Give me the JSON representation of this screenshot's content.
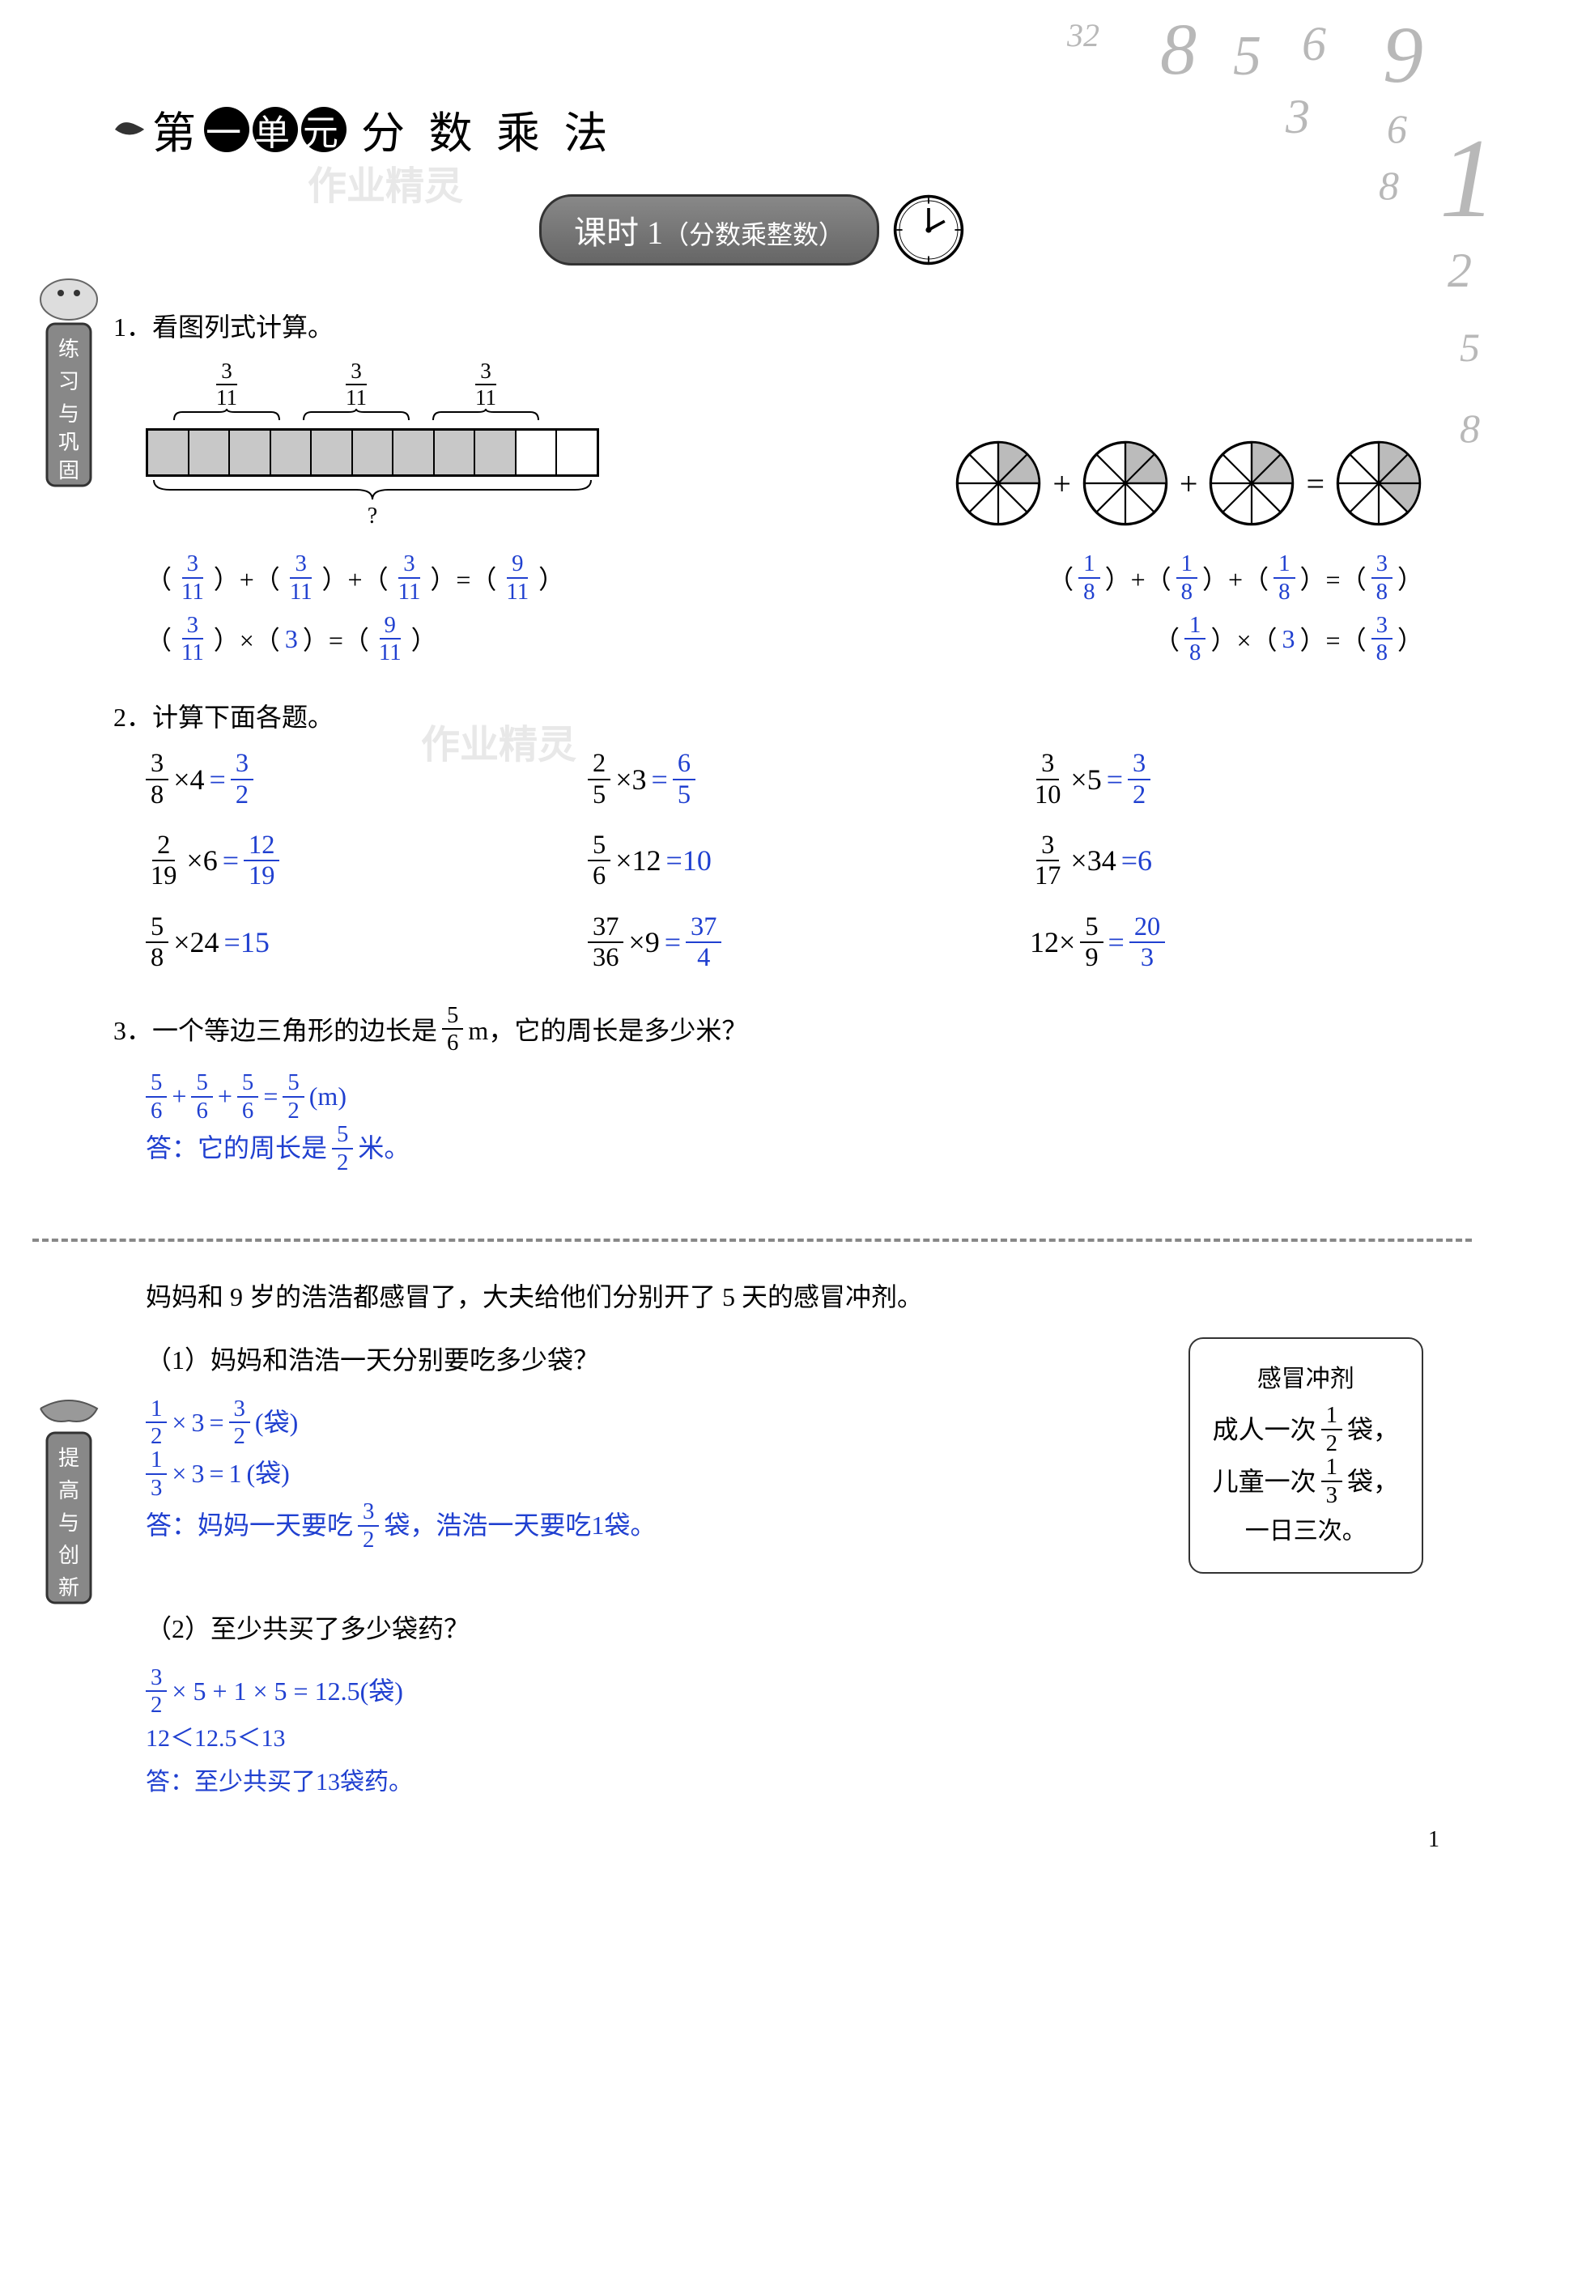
{
  "page_number": "1",
  "unit": {
    "prefix": "第",
    "c1": "一",
    "c2": "单",
    "c3": "元",
    "subject": "分 数 乘 法"
  },
  "watermark1": "作业精灵",
  "watermark2": "作业精灵",
  "lesson": {
    "label": "课时 1",
    "subtitle": "（分数乘整数）"
  },
  "decorative": {
    "n32": "32",
    "n8": "8",
    "n5": "5",
    "n6": "6",
    "n9": "9",
    "n3": "3",
    "n6b": "6",
    "n1": "1",
    "n8b": "8",
    "n2": "2",
    "n5b": "5",
    "n8c": "8"
  },
  "sidebar1": "练习与巩固",
  "sidebar2": "提高与创新",
  "q1": {
    "title": "1．看图列式计算。",
    "bar_label_num": "3",
    "bar_label_den": "11",
    "brace_q": "?",
    "left": {
      "l1_a_n": "3",
      "l1_a_d": "11",
      "l1_b_n": "3",
      "l1_b_d": "11",
      "l1_c_n": "3",
      "l1_c_d": "11",
      "l1_r_n": "9",
      "l1_r_d": "11",
      "l2_a_n": "3",
      "l2_a_d": "11",
      "l2_b": "3",
      "l2_r_n": "9",
      "l2_r_d": "11"
    },
    "right": {
      "r1_a_n": "1",
      "r1_a_d": "8",
      "r1_b_n": "1",
      "r1_b_d": "8",
      "r1_c_n": "1",
      "r1_c_d": "8",
      "r1_r_n": "3",
      "r1_r_d": "8",
      "r2_a_n": "1",
      "r2_a_d": "8",
      "r2_b": "3",
      "r2_r_n": "3",
      "r2_r_d": "8"
    }
  },
  "q2": {
    "title": "2．计算下面各题。",
    "items": [
      {
        "an": "3",
        "ad": "8",
        "op": "×",
        "b": "4",
        "rn": "3",
        "rd": "2",
        "layout": "f-n"
      },
      {
        "an": "2",
        "ad": "5",
        "op": "×",
        "b": "3",
        "rn": "6",
        "rd": "5",
        "layout": "f-n"
      },
      {
        "an": "3",
        "ad": "10",
        "op": "×",
        "b": "5",
        "rn": "3",
        "rd": "2",
        "layout": "f-n"
      },
      {
        "an": "2",
        "ad": "19",
        "op": "×",
        "b": "6",
        "rn": "12",
        "rd": "19",
        "layout": "f-n"
      },
      {
        "an": "5",
        "ad": "6",
        "op": "×",
        "b": "12",
        "r": "10",
        "layout": "f-n-int"
      },
      {
        "an": "3",
        "ad": "17",
        "op": "×",
        "b": "34",
        "r": "6",
        "layout": "f-n-int"
      },
      {
        "an": "5",
        "ad": "8",
        "op": "×",
        "b": "24",
        "r": "15",
        "layout": "f-n-int"
      },
      {
        "an": "37",
        "ad": "36",
        "op": "×",
        "b": "9",
        "rn": "37",
        "rd": "4",
        "layout": "f-n"
      },
      {
        "a": "12",
        "op": "×",
        "bn": "5",
        "bd": "9",
        "rn": "20",
        "rd": "3",
        "layout": "n-f"
      }
    ]
  },
  "q3": {
    "title_pre": "3．一个等边三角形的边长是",
    "fn": "5",
    "fd": "6",
    "title_post": " m，它的周长是多少米？",
    "ans_line1_a_n": "5",
    "ans_line1_a_d": "6",
    "ans_line1_b_n": "5",
    "ans_line1_b_d": "6",
    "ans_line1_c_n": "5",
    "ans_line1_c_d": "6",
    "ans_line1_r_n": "5",
    "ans_line1_r_d": "2",
    "ans_line1_unit": "(m)",
    "ans_line2_pre": "答：它的周长是",
    "ans_line2_r_n": "5",
    "ans_line2_r_d": "2",
    "ans_line2_post": "米。"
  },
  "q4": {
    "intro": "妈妈和 9 岁的浩浩都感冒了，大夫给他们分别开了 5 天的感冒冲剂。",
    "box": {
      "title": "感冒冲剂",
      "adult_pre": "成人一次",
      "adult_n": "1",
      "adult_d": "2",
      "adult_post": "袋，",
      "child_pre": "儿童一次",
      "child_n": "1",
      "child_d": "3",
      "child_post": "袋，",
      "freq": "一日三次。"
    },
    "sub1": {
      "q": "（1）妈妈和浩浩一天分别要吃多少袋？",
      "l1_a_n": "1",
      "l1_a_d": "2",
      "l1_b": "3",
      "l1_r_n": "3",
      "l1_r_d": "2",
      "l1_unit": "(袋)",
      "l2_a_n": "1",
      "l2_a_d": "3",
      "l2_b": "3",
      "l2_r": "1",
      "l2_unit": "(袋)",
      "ans_pre": "答：妈妈一天要吃",
      "ans_r_n": "3",
      "ans_r_d": "2",
      "ans_mid": "袋，浩浩一天要吃1袋。"
    },
    "sub2": {
      "q": "（2）至少共买了多少袋药？",
      "l1_a_n": "3",
      "l1_a_d": "2",
      "l1_rest": " × 5 + 1 × 5 = 12.5(袋)",
      "l2": "12＜12.5＜13",
      "ans": "答：至少共买了13袋药。"
    }
  },
  "colors": {
    "answer": "#2040d0",
    "text": "#000000",
    "decor": "#b8b8b8"
  }
}
